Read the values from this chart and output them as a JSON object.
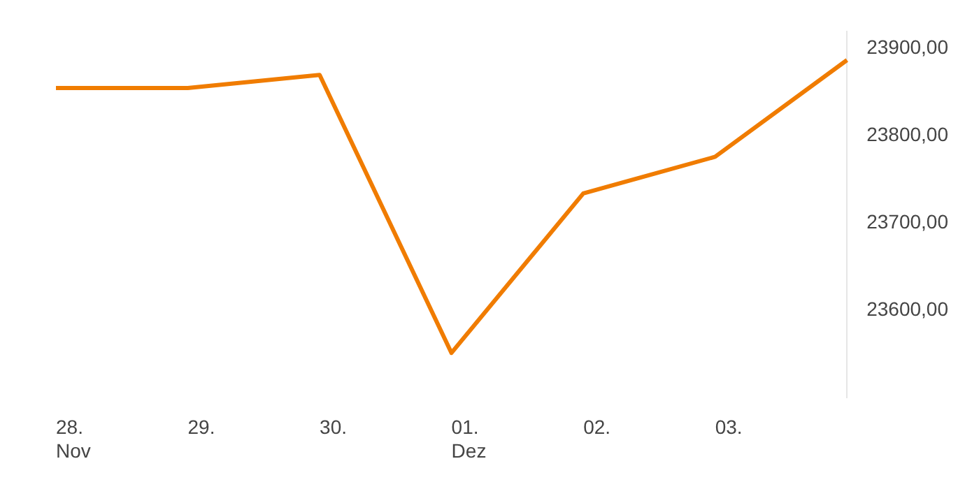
{
  "chart_data": {
    "type": "line",
    "categories": [
      "28.\nNov",
      "29.",
      "30.",
      "01.\nDez",
      "02.",
      "03.",
      null
    ],
    "series": [
      {
        "color": "#f07c00",
        "values": [
          23855,
          23855,
          23870,
          23551,
          23734,
          23776,
          23887
        ]
      }
    ],
    "ylim": [
      23500,
      23920
    ],
    "yticks": [
      {
        "value": 23600,
        "label": "23600,00"
      },
      {
        "value": 23700,
        "label": "23700,00"
      },
      {
        "value": 23800,
        "label": "23800,00"
      },
      {
        "value": 23900,
        "label": "23900,00"
      }
    ],
    "grid": false,
    "legend": false,
    "marker": "none",
    "line_style": "solid"
  }
}
